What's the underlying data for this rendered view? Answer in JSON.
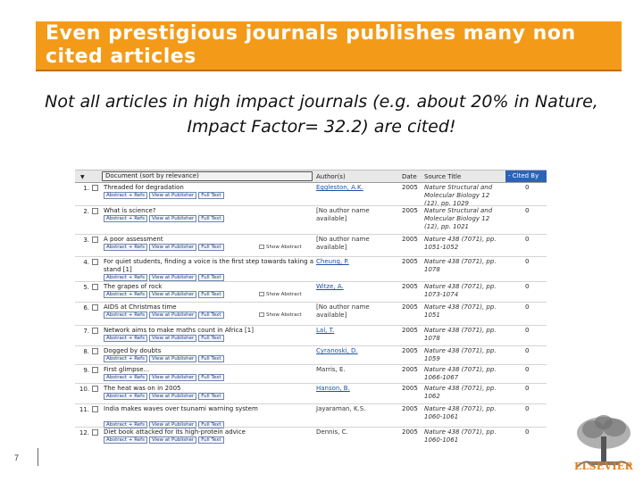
{
  "slide": {
    "title_line1": "Even prestigious journals publishes many non",
    "title_line2": "cited articles",
    "subtitle_line1": "Not all articles in high impact journals (e.g. about 20% in Nature,",
    "subtitle_line2": "Impact Factor= 32.2) are cited!",
    "page_number": "7",
    "logo_text": "ELSEVIER",
    "accent_color": "#f39b18"
  },
  "results": {
    "columns": {
      "sort_arrow": "▼",
      "document": "Document (sort by relevance)",
      "authors": "Author(s)",
      "date": "Date",
      "source": "Source Title",
      "cited": "- Cited By"
    },
    "link_labels": {
      "abstract": "Abstract + Refs",
      "publisher": "View at Publisher",
      "fulltext": "Full Text",
      "show_abstract": "Show Abstract"
    },
    "rows": [
      {
        "num": "1.",
        "title": "Threaded for degradation",
        "authors": "Eggleston, A.K.",
        "date": "2005",
        "source": "Nature Structural and Molecular Biology 12 (12), pp. 1029",
        "cited": "0"
      },
      {
        "num": "2.",
        "title": "What is science?",
        "authors": "[No author name available]",
        "date": "2005",
        "source": "Nature Structural and Molecular Biology 12 (12), pp. 1021",
        "cited": "0"
      },
      {
        "num": "3.",
        "title": "A poor assessment",
        "authors": "[No author name available]",
        "date": "2005",
        "source": "Nature 438 (7071), pp. 1051-1052",
        "cited": "0"
      },
      {
        "num": "4.",
        "title": "For quiet students, finding a voice is the first step towards taking a stand [1]",
        "authors": "Cheung, P.",
        "date": "2005",
        "source": "Nature 438 (7071), pp. 1078",
        "cited": "0"
      },
      {
        "num": "5.",
        "title": "The grapes of rock",
        "authors": "Witze, A.",
        "date": "2005",
        "source": "Nature 438 (7071), pp. 1073-1074",
        "cited": "0"
      },
      {
        "num": "6.",
        "title": "AIDS at Christmas time",
        "authors": "[No author name available]",
        "date": "2005",
        "source": "Nature 438 (7071), pp. 1051",
        "cited": "0"
      },
      {
        "num": "7.",
        "title": "Network aims to make maths count in Africa [1]",
        "authors": "Lal, T.",
        "date": "2005",
        "source": "Nature 438 (7071), pp. 1078",
        "cited": "0"
      },
      {
        "num": "8.",
        "title": "Dogged by doubts",
        "authors": "Cyranoski, D.",
        "date": "2005",
        "source": "Nature 438 (7071), pp. 1059",
        "cited": "0"
      },
      {
        "num": "9.",
        "title": "First glimpse...",
        "authors": "Marris, E.",
        "date": "2005",
        "source": "Nature 438 (7071), pp. 1066-1067",
        "cited": "0"
      },
      {
        "num": "10.",
        "title": "The heat was on in 2005",
        "authors": "Hanson, B.",
        "date": "2005",
        "source": "Nature 438 (7071), pp. 1062",
        "cited": "0"
      },
      {
        "num": "11.",
        "title": "India makes waves over tsunami warning system",
        "authors": "Jayaraman, K.S.",
        "date": "2005",
        "source": "Nature 438 (7071), pp. 1060-1061",
        "cited": "0"
      },
      {
        "num": "12.",
        "title": "Diet book attacked for its high-protein advice",
        "authors": "Dennis, C.",
        "date": "2005",
        "source": "Nature 438 (7071), pp. 1060-1061",
        "cited": "0"
      }
    ]
  }
}
